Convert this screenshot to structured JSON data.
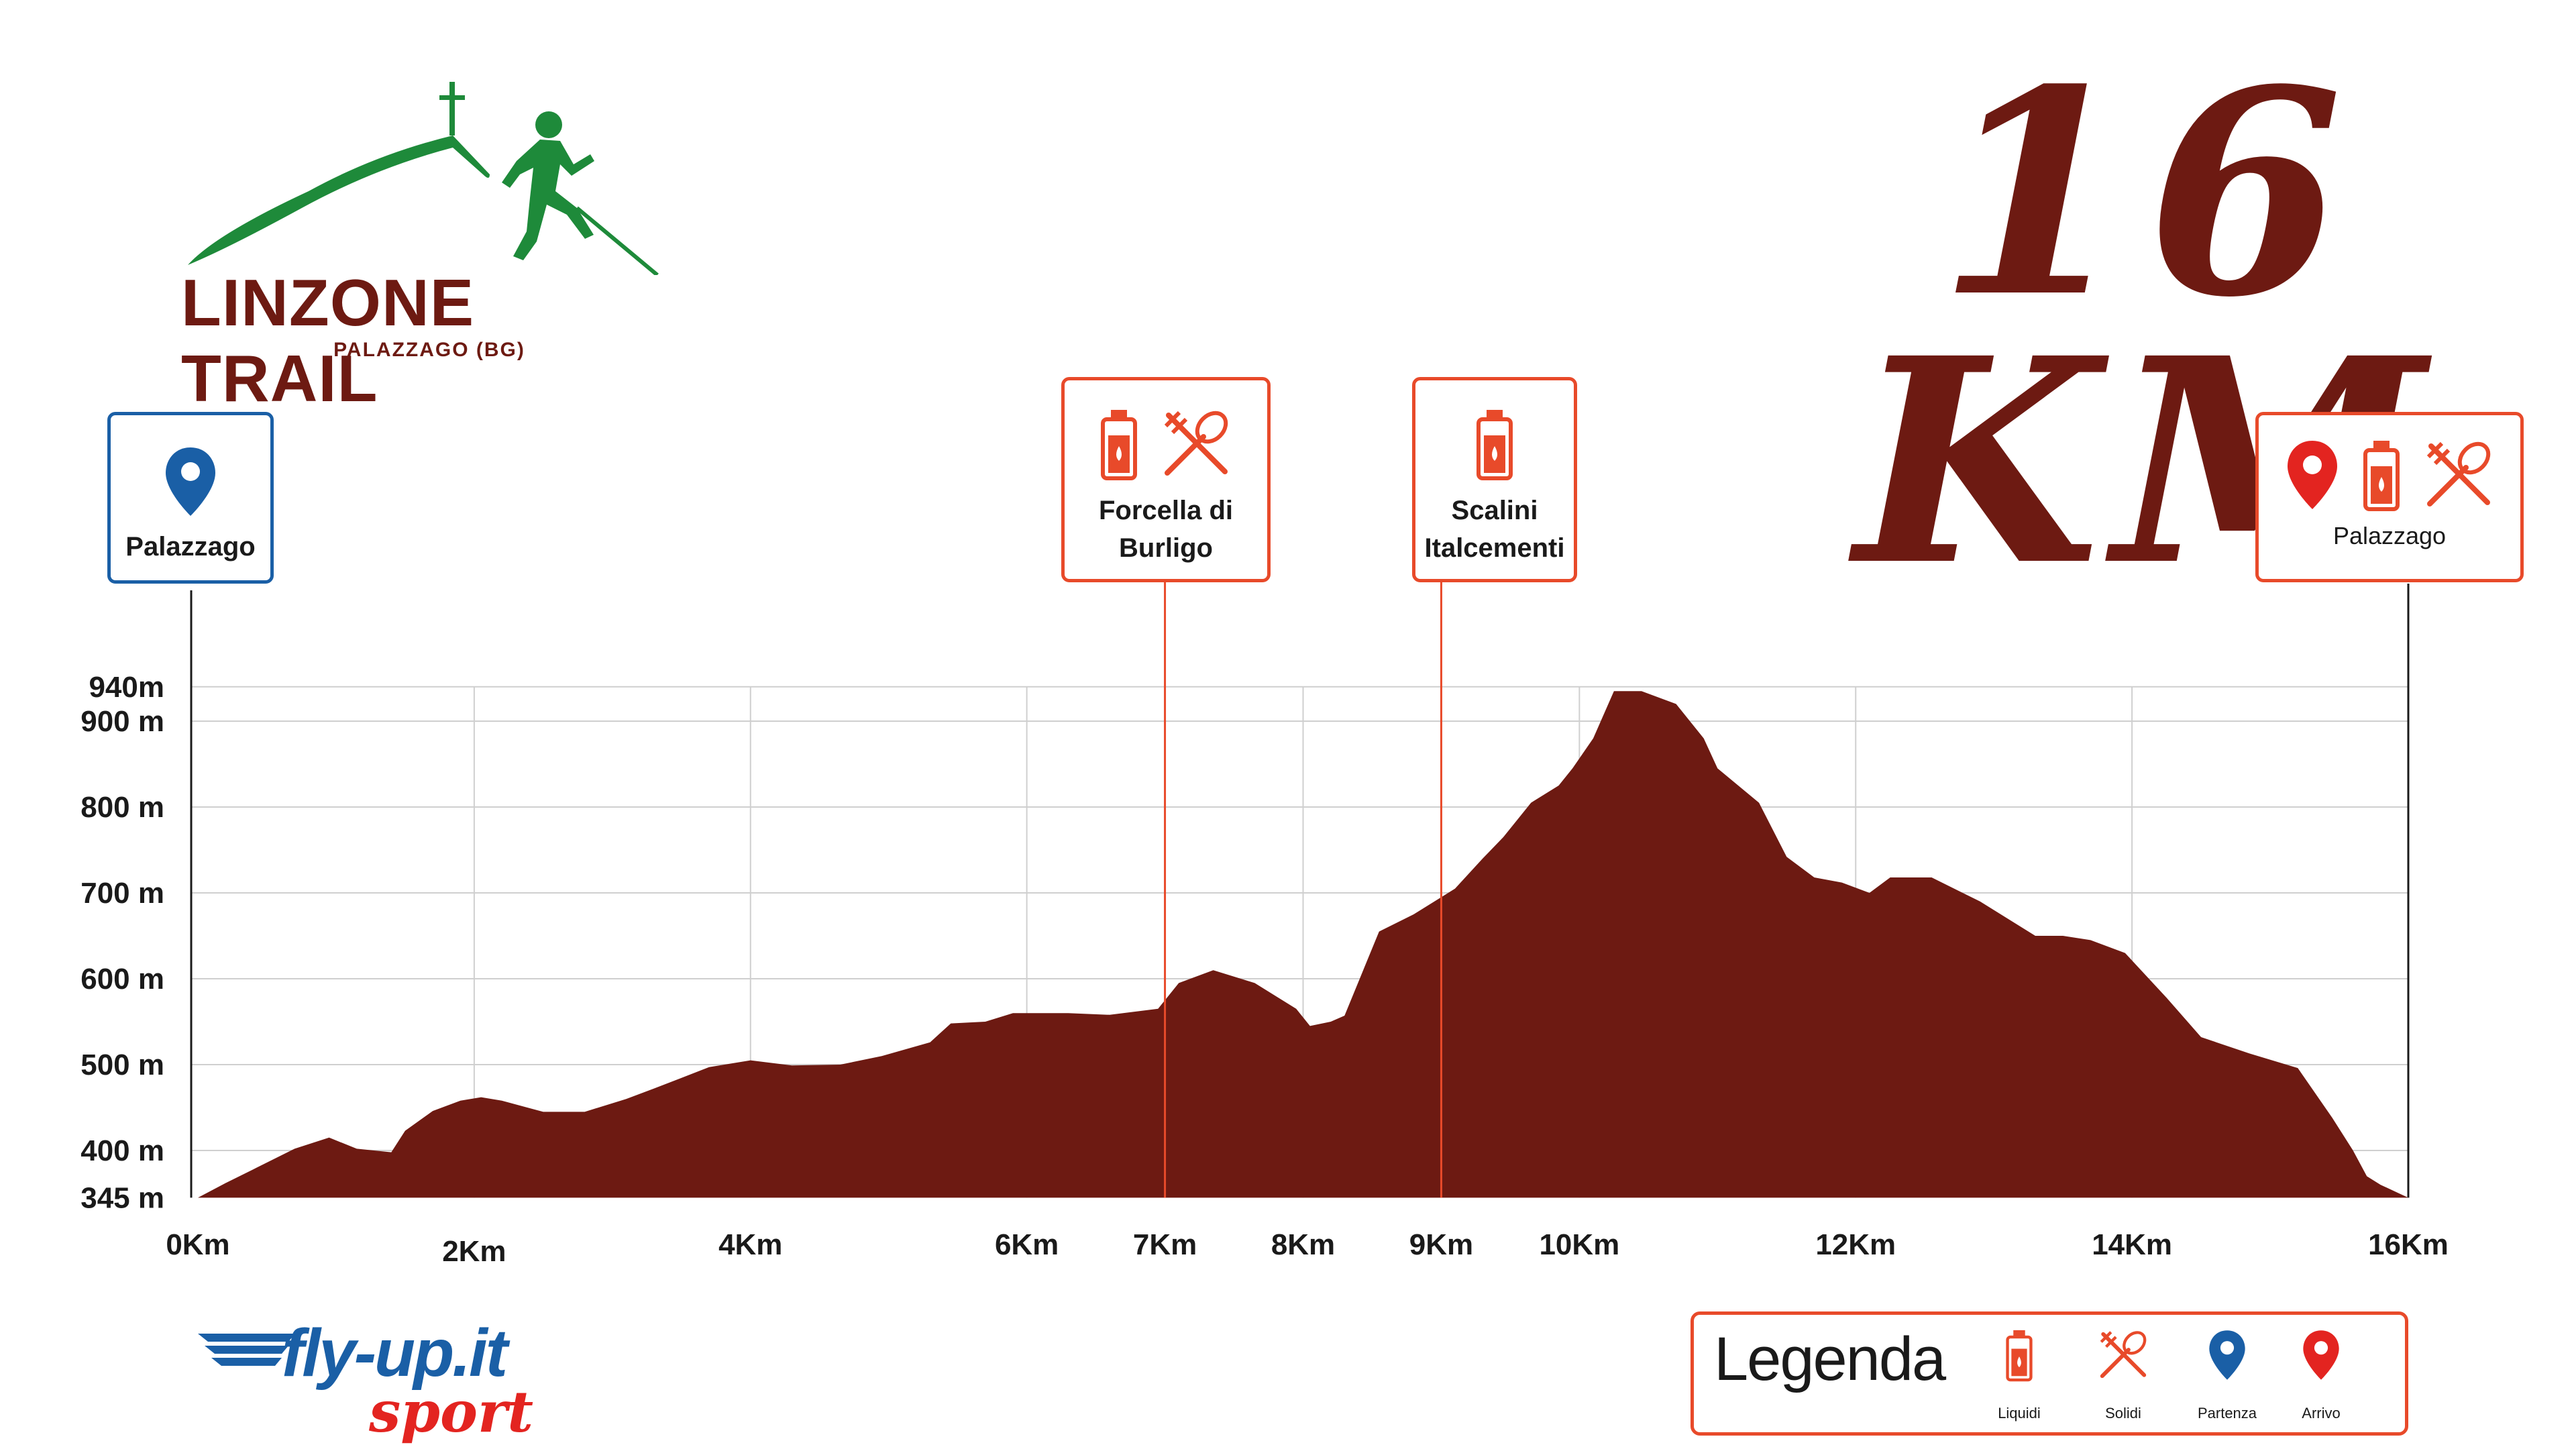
{
  "logo": {
    "title": "LINZONE TRAIL",
    "subtitle": "PALAZZAGO (BG)"
  },
  "race_title": "16 KM",
  "colors": {
    "profile": "#6d1a12",
    "accent": "#e84a2a",
    "blue": "#1a5fa6",
    "green": "#1e8a3a",
    "red": "#e32420"
  },
  "markers": {
    "start": {
      "label": "Palazzago",
      "icons": [
        "start-pin-icon"
      ]
    },
    "forcella": {
      "label_line1": "Forcella di",
      "label_line2": "Burligo",
      "icons": [
        "liquids-icon",
        "solids-icon"
      ]
    },
    "scalini": {
      "label_line1": "Scalini",
      "label_line2": "Italcementi",
      "icons": [
        "liquids-icon"
      ]
    },
    "finish": {
      "label": "Palazzago",
      "icons": [
        "finish-pin-icon",
        "liquids-icon",
        "solids-icon"
      ]
    }
  },
  "chart_data": {
    "type": "area",
    "xlabel": "",
    "ylabel": "",
    "xlim": [
      0,
      16
    ],
    "ylim": [
      345,
      940
    ],
    "x_ticks": [
      {
        "value": 0,
        "label": "0Km"
      },
      {
        "value": 2,
        "label": "2Km"
      },
      {
        "value": 4,
        "label": "4Km"
      },
      {
        "value": 6,
        "label": "6Km"
      },
      {
        "value": 7,
        "label": "7Km"
      },
      {
        "value": 8,
        "label": "8Km"
      },
      {
        "value": 9,
        "label": "9Km"
      },
      {
        "value": 10,
        "label": "10Km"
      },
      {
        "value": 12,
        "label": "12Km"
      },
      {
        "value": 14,
        "label": "14Km"
      },
      {
        "value": 16,
        "label": "16Km"
      }
    ],
    "y_ticks": [
      {
        "value": 940,
        "label": "940m"
      },
      {
        "value": 900,
        "label": "900 m"
      },
      {
        "value": 800,
        "label": "800 m"
      },
      {
        "value": 700,
        "label": "700 m"
      },
      {
        "value": 600,
        "label": "600 m"
      },
      {
        "value": 500,
        "label": "500 m"
      },
      {
        "value": 400,
        "label": "400 m"
      },
      {
        "value": 345,
        "label": "345 m"
      }
    ],
    "aid_stations": [
      7.0,
      9.0
    ],
    "series": [
      {
        "x": [
          0.0,
          0.2,
          0.4,
          0.7,
          0.95,
          1.15,
          1.4,
          1.5,
          1.7,
          1.9,
          2.05,
          2.2,
          2.5,
          2.8,
          3.1,
          3.3,
          3.7,
          4.0,
          4.3,
          4.65,
          4.95,
          5.3,
          5.45,
          5.7,
          5.9,
          6.3,
          6.6,
          6.95,
          7.1,
          7.35,
          7.65,
          7.95,
          8.05,
          8.2,
          8.3,
          8.55,
          8.8,
          9.1,
          9.3,
          9.45,
          9.65,
          9.85,
          9.95,
          10.1,
          10.25,
          10.45,
          10.7,
          10.9,
          11.0,
          11.3,
          11.5,
          11.7,
          11.9,
          12.1,
          12.25,
          12.55,
          12.9,
          13.3,
          13.5,
          13.7,
          13.95,
          14.25,
          14.5,
          14.85,
          15.2,
          15.45,
          15.6,
          15.7,
          15.8,
          16.0
        ],
        "y": [
          345,
          362,
          378,
          402,
          415,
          402,
          398,
          423,
          446,
          458,
          462,
          458,
          445,
          445,
          460,
          472,
          497,
          505,
          499,
          500,
          510,
          526,
          548,
          550,
          560,
          560,
          558,
          565,
          595,
          610,
          595,
          565,
          545,
          550,
          557,
          655,
          675,
          705,
          740,
          765,
          805,
          825,
          845,
          880,
          935,
          935,
          920,
          880,
          845,
          805,
          742,
          718,
          712,
          700,
          718,
          718,
          690,
          650,
          650,
          645,
          630,
          578,
          532,
          513,
          496,
          438,
          400,
          370,
          360,
          345
        ]
      }
    ]
  },
  "legend": {
    "title": "Legenda",
    "items": [
      {
        "icon": "liquids-icon",
        "label": "Liquidi"
      },
      {
        "icon": "solids-icon",
        "label": "Solidi"
      },
      {
        "icon": "start-pin-icon",
        "label": "Partenza"
      },
      {
        "icon": "finish-pin-icon",
        "label": "Arrivo"
      }
    ]
  },
  "sponsor": {
    "name": "fly-up.it",
    "tagline": "sport"
  }
}
